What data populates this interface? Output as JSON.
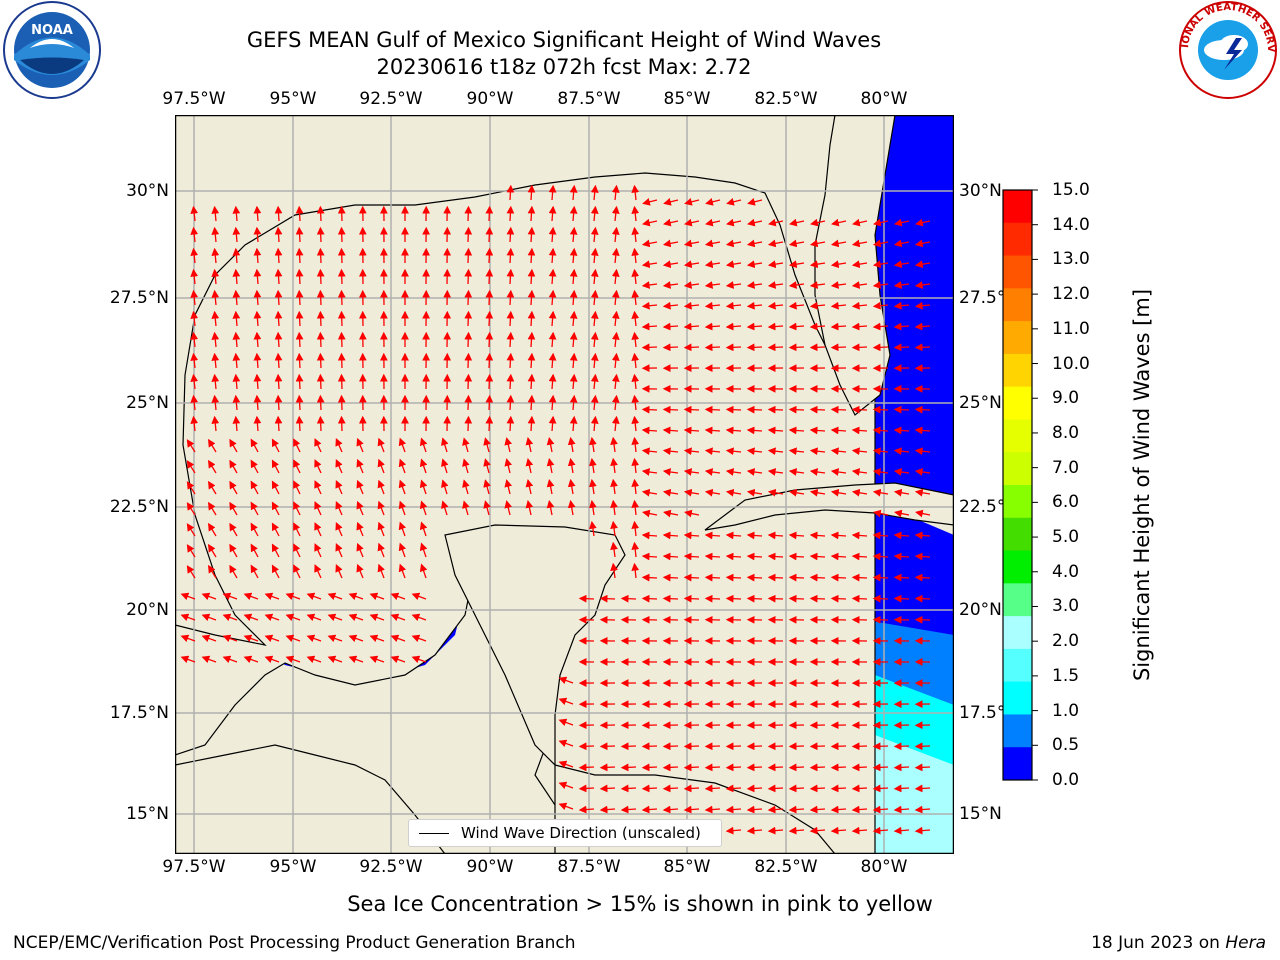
{
  "title_line1": "GEFS MEAN Gulf of Mexico Significant Height of Wind Waves",
  "title_line2": "20230616 t18z 072h fcst   Max: 2.72",
  "lon_labels": [
    "97.5°W",
    "95°W",
    "92.5°W",
    "90°W",
    "87.5°W",
    "85°W",
    "82.5°W",
    "80°W"
  ],
  "lat_labels": [
    "30°N",
    "27.5°N",
    "25°N",
    "22.5°N",
    "20°N",
    "17.5°N",
    "15°N"
  ],
  "colorbar": {
    "label": "Significant Height of Wind Waves [m]",
    "ticks": [
      "15.0",
      "14.0",
      "13.0",
      "12.0",
      "11.0",
      "10.0",
      "9.0",
      "8.0",
      "7.0",
      "6.0",
      "5.0",
      "4.0",
      "3.0",
      "2.0",
      "1.5",
      "1.0",
      "0.5",
      "0.0"
    ],
    "colors": [
      "#ff0000",
      "#ff2a00",
      "#ff5500",
      "#ff8000",
      "#ffaa00",
      "#ffd400",
      "#ffff00",
      "#e6ff00",
      "#ccff00",
      "#88ff00",
      "#44dd00",
      "#00ee00",
      "#55ff88",
      "#aaffff",
      "#55ffff",
      "#00ffff",
      "#0080ff",
      "#0000ff"
    ]
  },
  "legend_label": "Wind Wave Direction (unscaled)",
  "ice_note": "Sea Ice Concentration > 15% is shown in pink to yellow",
  "footer_left": "NCEP/EMC/Verification Post Processing Product Generation Branch",
  "footer_date": "18 Jun 2023 on",
  "footer_host": "Hera",
  "colors": {
    "land": "#efedda",
    "ocean_low": "#0000ff",
    "ocean_mid": "#0080ff",
    "ocean_high": "#00ffff",
    "ocean_peak": "#aaffff",
    "arrow": "#ff0000",
    "grid": "#b0b0b0"
  },
  "logos": {
    "left": "NOAA",
    "right": "NATIONAL WEATHER SERVICE"
  }
}
